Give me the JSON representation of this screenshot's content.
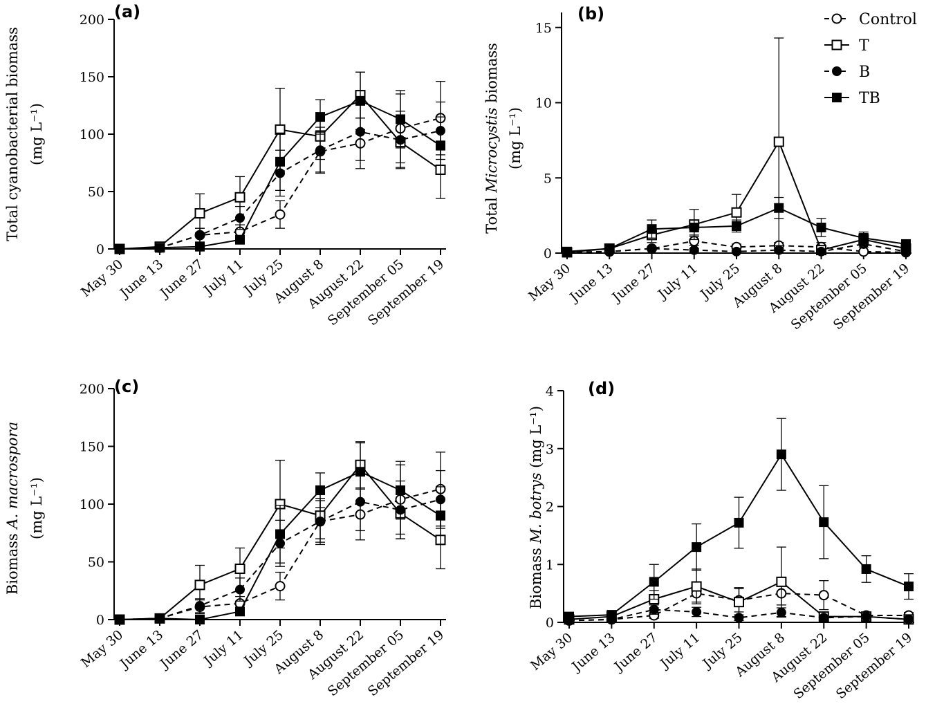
{
  "legend": [
    {
      "key": "control",
      "label": "Control",
      "marker": "circle-open",
      "dash": "dashed"
    },
    {
      "key": "t",
      "label": "T",
      "marker": "square-open",
      "dash": "solid"
    },
    {
      "key": "b",
      "label": "B",
      "marker": "circle-filled",
      "dash": "dashed"
    },
    {
      "key": "tb",
      "label": "TB",
      "marker": "square-filled",
      "dash": "solid"
    }
  ],
  "chart_data": [
    {
      "type": "line",
      "panel": "(a)",
      "ylabel_lines": [
        "Total cyanobacterial biomass",
        "(mg L⁻¹)"
      ],
      "categories": [
        "May 30",
        "June 13",
        "June 27",
        "July 11",
        "July 25",
        "August 8",
        "August 22",
        "September 05",
        "September 19"
      ],
      "ylim": [
        0,
        200
      ],
      "yticks": [
        0,
        50,
        100,
        150,
        200
      ],
      "series": [
        {
          "key": "control",
          "values": [
            0,
            1,
            12,
            15,
            30,
            85,
            92,
            105,
            114
          ],
          "errors": [
            0,
            1,
            6,
            6,
            12,
            18,
            22,
            30,
            32
          ]
        },
        {
          "key": "t",
          "values": [
            0,
            2,
            31,
            45,
            104,
            98,
            134,
            93,
            69
          ],
          "errors": [
            0,
            1,
            17,
            18,
            36,
            20,
            20,
            22,
            25
          ]
        },
        {
          "key": "b",
          "values": [
            0,
            1,
            12,
            27,
            66,
            86,
            102,
            95,
            103
          ],
          "errors": [
            0,
            1,
            6,
            10,
            20,
            20,
            25,
            25,
            25
          ]
        },
        {
          "key": "tb",
          "values": [
            0,
            1,
            2,
            8,
            76,
            115,
            129,
            113,
            90
          ],
          "errors": [
            0,
            0,
            1,
            3,
            25,
            15,
            25,
            25,
            25
          ]
        }
      ]
    },
    {
      "type": "line",
      "panel": "(b)",
      "ylabel_lines": [
        "Total Microcystis biomass",
        "(mg L⁻¹)"
      ],
      "categories": [
        "May 30",
        "June 13",
        "June 27",
        "July 11",
        "July 25",
        "August 8",
        "August 22",
        "September 05",
        "September 19"
      ],
      "ylim": [
        0,
        16
      ],
      "yticks": [
        0,
        5,
        10,
        15
      ],
      "series": [
        {
          "key": "control",
          "values": [
            0.05,
            0.1,
            0.3,
            0.8,
            0.4,
            0.5,
            0.4,
            0.1,
            0.05
          ],
          "errors": [
            0,
            0.05,
            0.1,
            0.3,
            0.2,
            0.2,
            0.3,
            0.1,
            0.05
          ]
        },
        {
          "key": "t",
          "values": [
            0.05,
            0.3,
            1.2,
            1.9,
            2.7,
            7.4,
            0.2,
            0.9,
            0.3
          ],
          "errors": [
            0,
            0.1,
            0.5,
            1.0,
            1.2,
            6.9,
            0.2,
            0.4,
            0.2
          ]
        },
        {
          "key": "b",
          "values": [
            0.05,
            0.1,
            0.3,
            0.2,
            0.1,
            0.2,
            0.1,
            0.6,
            0.1
          ],
          "errors": [
            0,
            0.05,
            0.1,
            0.1,
            0.1,
            0.1,
            0.1,
            0.2,
            0.05
          ]
        },
        {
          "key": "tb",
          "values": [
            0.1,
            0.3,
            1.6,
            1.7,
            1.8,
            3.0,
            1.7,
            1.0,
            0.6
          ],
          "errors": [
            0,
            0.1,
            0.6,
            0.5,
            0.4,
            0.7,
            0.6,
            0.4,
            0.2
          ]
        }
      ]
    },
    {
      "type": "line",
      "panel": "(c)",
      "ylabel_lines": [
        "Biomass A. macrospora",
        "(mg L⁻¹)"
      ],
      "categories": [
        "May 30",
        "June 13",
        "June 27",
        "July 11",
        "July 25",
        "August 8",
        "August 22",
        "September 05",
        "September 19"
      ],
      "ylim": [
        0,
        200
      ],
      "yticks": [
        0,
        50,
        100,
        150,
        200
      ],
      "series": [
        {
          "key": "control",
          "values": [
            0,
            1,
            11,
            14,
            29,
            85,
            91,
            104,
            113
          ],
          "errors": [
            0,
            1,
            6,
            6,
            12,
            18,
            22,
            30,
            32
          ]
        },
        {
          "key": "t",
          "values": [
            0,
            1,
            30,
            44,
            100,
            90,
            134,
            92,
            69
          ],
          "errors": [
            0,
            1,
            17,
            18,
            38,
            20,
            20,
            22,
            25
          ]
        },
        {
          "key": "b",
          "values": [
            0,
            1,
            12,
            26,
            66,
            85,
            102,
            95,
            104
          ],
          "errors": [
            0,
            1,
            6,
            10,
            20,
            20,
            25,
            25,
            25
          ]
        },
        {
          "key": "tb",
          "values": [
            0,
            1,
            0,
            7,
            74,
            112,
            128,
            112,
            90
          ],
          "errors": [
            0,
            0,
            1,
            3,
            25,
            15,
            25,
            25,
            25
          ]
        }
      ]
    },
    {
      "type": "line",
      "panel": "(d)",
      "ylabel_lines": [
        "Biomass M. botrys (mg L⁻¹)"
      ],
      "categories": [
        "May 30",
        "June 13",
        "June 27",
        "July 11",
        "July 25",
        "August 8",
        "August 22",
        "September 05",
        "September 19"
      ],
      "ylim": [
        0,
        4
      ],
      "yticks": [
        0,
        1,
        2,
        3,
        4
      ],
      "series": [
        {
          "key": "control",
          "values": [
            0.03,
            0.05,
            0.12,
            0.5,
            0.38,
            0.5,
            0.47,
            0.12,
            0.12
          ],
          "errors": [
            0,
            0.02,
            0.05,
            0.15,
            0.2,
            0.2,
            0.25,
            0.05,
            0.05
          ]
        },
        {
          "key": "t",
          "values": [
            0.05,
            0.1,
            0.4,
            0.62,
            0.35,
            0.7,
            0.1,
            0.1,
            0.05
          ],
          "errors": [
            0,
            0.03,
            0.15,
            0.3,
            0.25,
            0.6,
            0.05,
            0.05,
            0.03
          ]
        },
        {
          "key": "b",
          "values": [
            0.03,
            0.05,
            0.22,
            0.18,
            0.08,
            0.17,
            0.08,
            0.1,
            0.05
          ],
          "errors": [
            0,
            0.02,
            0.08,
            0.08,
            0.05,
            0.08,
            0.04,
            0.04,
            0.03
          ]
        },
        {
          "key": "tb",
          "values": [
            0.1,
            0.13,
            0.7,
            1.3,
            1.72,
            2.9,
            1.73,
            0.92,
            0.62
          ],
          "errors": [
            0,
            0.05,
            0.3,
            0.4,
            0.44,
            0.62,
            0.63,
            0.23,
            0.22
          ]
        }
      ]
    }
  ]
}
